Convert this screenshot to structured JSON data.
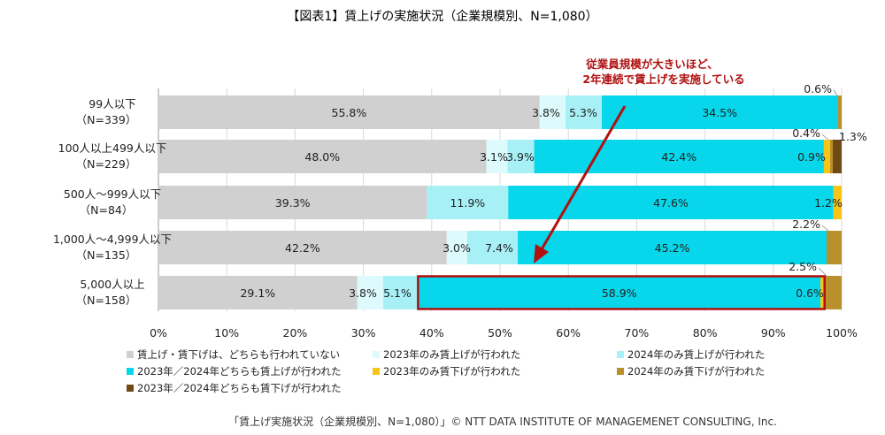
{
  "chart_data": {
    "type": "bar",
    "orientation": "horizontal",
    "stacked": true,
    "title": "【図表1】賃上げの実施状況（企業規模別、N=1,080）",
    "categories": [
      [
        "99人以下",
        "（N=339）"
      ],
      [
        "100人以上499人以下",
        "（N=229）"
      ],
      [
        "500人～999人以下",
        "（N=84）"
      ],
      [
        "1,000人～4,999人以下",
        "（N=135）"
      ],
      [
        "5,000人以上",
        "（N=158）"
      ]
    ],
    "series": [
      {
        "name": "賃上げ・賃下げは、どちらも行われていない",
        "color": "#d0d0d0",
        "values": [
          55.8,
          48.0,
          39.3,
          42.2,
          29.1
        ]
      },
      {
        "name": "2023年のみ賃上げが行われた",
        "color": "#ddfafc",
        "values": [
          3.8,
          3.1,
          0.0,
          3.0,
          3.8
        ]
      },
      {
        "name": "2024年のみ賃上げが行われた",
        "color": "#a7f0f6",
        "values": [
          5.3,
          3.9,
          11.9,
          7.4,
          5.1
        ]
      },
      {
        "name": "2023年／2024年どちらも賃上げが行われた",
        "color": "#08d6ea",
        "values": [
          34.5,
          42.4,
          47.6,
          45.2,
          58.9
        ]
      },
      {
        "name": "2023年のみ賃下げが行われた",
        "color": "#f7c518",
        "values": [
          0.0,
          0.9,
          1.2,
          0.0,
          0.6
        ]
      },
      {
        "name": "2024年のみ賃下げが行われた",
        "color": "#b8912c",
        "values": [
          0.6,
          0.4,
          0.0,
          2.2,
          2.5
        ]
      },
      {
        "name": "2023年／2024年どちらも賃下げが行われた",
        "color": "#6e4a14",
        "values": [
          0.0,
          1.3,
          0.0,
          0.0,
          0.0
        ]
      }
    ],
    "xlim": [
      0,
      100
    ],
    "xticks": [
      "0%",
      "10%",
      "20%",
      "30%",
      "40%",
      "50%",
      "60%",
      "70%",
      "80%",
      "90%",
      "100%"
    ],
    "grid": true,
    "legend_position": "bottom",
    "bar_labels": [
      [
        [
          "0",
          "55.8%"
        ],
        [
          "1",
          "3.8%"
        ],
        [
          "2",
          "5.3%"
        ],
        [
          "3",
          "34.5%"
        ],
        [
          "5",
          "0.6%"
        ]
      ],
      [
        [
          "0",
          "48.0%"
        ],
        [
          "1",
          "3.1%"
        ],
        [
          "2",
          "3.9%"
        ],
        [
          "3",
          "42.4%"
        ],
        [
          "4",
          "0.9%"
        ],
        [
          "5",
          "0.4%"
        ],
        [
          "6",
          "1.3%"
        ]
      ],
      [
        [
          "0",
          "39.3%"
        ],
        [
          "2",
          "11.9%"
        ],
        [
          "3",
          "47.6%"
        ],
        [
          "4",
          "1.2%"
        ]
      ],
      [
        [
          "0",
          "42.2%"
        ],
        [
          "1",
          "3.0%"
        ],
        [
          "2",
          "7.4%"
        ],
        [
          "3",
          "45.2%"
        ],
        [
          "5",
          "2.2%"
        ]
      ],
      [
        [
          "0",
          "29.1%"
        ],
        [
          "1",
          "3.8%"
        ],
        [
          "2",
          "5.1%"
        ],
        [
          "3",
          "58.9%"
        ],
        [
          "4",
          "0.6%"
        ],
        [
          "5",
          "2.5%"
        ]
      ]
    ],
    "annotation": {
      "lines": [
        "従業員規模が大きいほど、",
        "2年連続で賃上げを実施している"
      ],
      "color": "#b01010"
    },
    "highlight_color": "#b01010",
    "footer": "「賃上げ実施状況（企業規模別、N=1,080）」© NTT DATA INSTITUTE OF MANAGEMENET CONSULTING, Inc."
  }
}
